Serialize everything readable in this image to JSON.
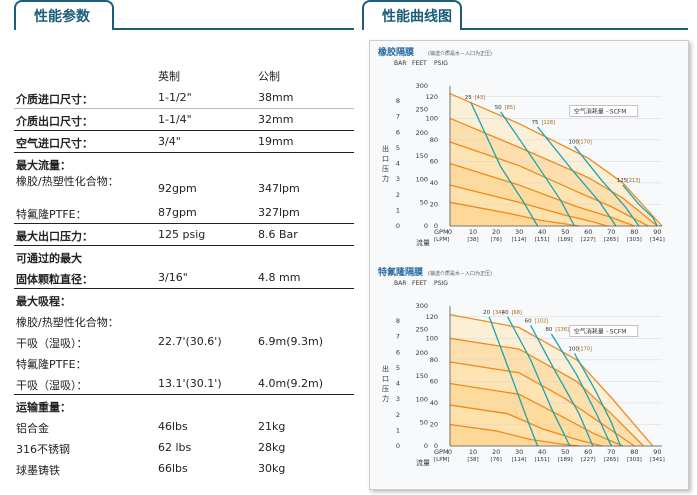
{
  "tabs": {
    "params": "性能参数",
    "curves": "性能曲线图"
  },
  "spec_table": {
    "col_imperial": "英制",
    "col_metric": "公制",
    "rows": [
      {
        "label": "介质进口尺寸：",
        "bold": true,
        "v1": "1-1/2\"",
        "v2": "38mm",
        "border": "thin"
      },
      {
        "label": "介质出口尺寸：",
        "bold": true,
        "v1": "1-1/4\"",
        "v2": "32mm",
        "border": "thick"
      },
      {
        "label": "空气进口尺寸：",
        "bold": true,
        "v1": "3/4\"",
        "v2": "19mm",
        "border": "thick"
      },
      {
        "label": "最大流量：",
        "bold": true,
        "v1": "",
        "v2": "",
        "border": "none"
      },
      {
        "label": "橡胶/热塑性化合物：",
        "bold": false,
        "v1": "92gpm",
        "v2": "347lpm",
        "border": "none",
        "tall": true
      },
      {
        "label": "特氟隆PTFE：",
        "bold": false,
        "v1": "87gpm",
        "v2": "327lpm",
        "border": "thick"
      },
      {
        "label": "最大出口压力：",
        "bold": true,
        "v1": "125 psig",
        "v2": "8.6 Bar",
        "border": "thick"
      },
      {
        "label": "可通过的最大",
        "bold": true,
        "v1": "",
        "v2": "",
        "border": "none"
      },
      {
        "label": "固体颗粒直径：",
        "bold": true,
        "v1": "3/16\"",
        "v2": "4.8 mm",
        "border": "thick"
      },
      {
        "label": "最大吸程：",
        "bold": true,
        "v1": "",
        "v2": "",
        "border": "none"
      },
      {
        "label": "橡胶/热塑性化合物：",
        "bold": false,
        "v1": "",
        "v2": "",
        "border": "none"
      },
      {
        "label": "干吸（湿吸）：",
        "bold": false,
        "v1": "22.7'(30.6')",
        "v2": "6.9m(9.3m)",
        "border": "none"
      },
      {
        "label": "特氟隆PTFE：",
        "bold": false,
        "v1": "",
        "v2": "",
        "border": "none"
      },
      {
        "label": "干吸（湿吸）：",
        "bold": false,
        "v1": "13.1'(30.1')",
        "v2": "4.0m(9.2m)",
        "border": "thick"
      },
      {
        "label": "运输重量：",
        "bold": true,
        "v1": "",
        "v2": "",
        "border": "none"
      },
      {
        "label": "铝合金",
        "bold": false,
        "v1": "46lbs",
        "v2": "21kg",
        "border": "none"
      },
      {
        "label": "316不锈钢",
        "bold": false,
        "v1": "62 lbs",
        "v2": "28kg",
        "border": "none"
      },
      {
        "label": "球墨铸铁",
        "bold": false,
        "v1": "66lbs",
        "v2": "30kg",
        "border": "none"
      }
    ]
  },
  "chart_data": [
    {
      "type": "line",
      "title": "橡胶隔膜",
      "subtitle": "(输送介质是水－入口为正压)",
      "axis_headers": [
        "BAR",
        "FEET",
        "PSIG"
      ],
      "ylabel": "出口压力",
      "xlabel": "流量",
      "x_unit_labels": [
        "GPM",
        "[LPM]"
      ],
      "x_ticks": [
        0,
        10,
        20,
        30,
        40,
        50,
        60,
        70,
        80,
        90
      ],
      "x_tick_lpm": [
        "[38]",
        "[76]",
        "[114]",
        "[151]",
        "[189]",
        "[227]",
        "[265]",
        "[303]",
        "[341]"
      ],
      "psig_ticks": [
        0,
        20,
        40,
        60,
        80,
        100,
        120
      ],
      "bar_ticks": [
        0,
        1,
        2,
        3,
        4,
        5,
        6,
        7,
        8
      ],
      "feet_ticks": [
        0,
        50,
        100,
        150,
        200,
        250,
        300
      ],
      "xlim": [
        0,
        92
      ],
      "ylim": [
        0,
        130
      ],
      "legend": "空气消耗量 - SCFM",
      "pressure_series": [
        {
          "x": [
            0,
            30,
            60,
            75,
            92
          ],
          "y": [
            123,
            95,
            63,
            40,
            0
          ]
        },
        {
          "x": [
            0,
            30,
            60,
            75,
            90
          ],
          "y": [
            100,
            73,
            45,
            26,
            0
          ]
        },
        {
          "x": [
            0,
            30,
            55,
            70,
            86
          ],
          "y": [
            78,
            56,
            32,
            18,
            0
          ]
        },
        {
          "x": [
            0,
            30,
            55,
            70,
            80
          ],
          "y": [
            58,
            38,
            18,
            8,
            0
          ]
        },
        {
          "x": [
            0,
            30,
            50,
            62,
            68
          ],
          "y": [
            38,
            22,
            10,
            4,
            0
          ]
        },
        {
          "x": [
            0,
            25,
            40,
            50,
            56
          ],
          "y": [
            22,
            12,
            5,
            2,
            0
          ]
        }
      ],
      "air_series": [
        {
          "label": "25",
          "label_metric": "[43]",
          "x": [
            9,
            22,
            32,
            38
          ],
          "y": [
            115,
            55,
            22,
            0
          ]
        },
        {
          "label": "50",
          "label_metric": "[85]",
          "x": [
            22,
            38,
            48,
            54
          ],
          "y": [
            106,
            56,
            24,
            0
          ]
        },
        {
          "label": "75",
          "label_metric": "[128]",
          "x": [
            38,
            53,
            65,
            72
          ],
          "y": [
            92,
            52,
            22,
            0
          ]
        },
        {
          "label": "100",
          "label_metric": "[170]",
          "x": [
            54,
            66,
            76,
            82
          ],
          "y": [
            74,
            42,
            18,
            0
          ]
        },
        {
          "label": "125",
          "label_metric": "[213]",
          "x": [
            75,
            82,
            88,
            90
          ],
          "y": [
            38,
            20,
            8,
            0
          ]
        }
      ]
    },
    {
      "type": "line",
      "title": "特氟隆隔膜",
      "subtitle": "(输送介质是水－入口为正压)",
      "axis_headers": [
        "BAR",
        "FEET",
        "PSIG"
      ],
      "ylabel": "出口压力",
      "xlabel": "流量",
      "x_unit_labels": [
        "GPM",
        "[LPM]"
      ],
      "x_ticks": [
        0,
        10,
        20,
        30,
        40,
        50,
        60,
        70,
        80,
        90
      ],
      "x_tick_lpm": [
        "[38]",
        "[76]",
        "[114]",
        "[151]",
        "[189]",
        "[227]",
        "[265]",
        "[303]",
        "[341]"
      ],
      "psig_ticks": [
        0,
        20,
        40,
        60,
        80,
        100,
        120
      ],
      "bar_ticks": [
        0,
        1,
        2,
        3,
        4,
        5,
        6,
        7,
        8
      ],
      "feet_ticks": [
        0,
        50,
        100,
        150,
        200,
        250,
        300
      ],
      "xlim": [
        0,
        92
      ],
      "ylim": [
        0,
        130
      ],
      "legend": "空气消耗量 - SCFM",
      "pressure_series": [
        {
          "x": [
            0,
            30,
            55,
            70,
            88
          ],
          "y": [
            122,
            110,
            80,
            45,
            0
          ]
        },
        {
          "x": [
            0,
            30,
            55,
            70,
            84
          ],
          "y": [
            100,
            90,
            60,
            30,
            0
          ]
        },
        {
          "x": [
            0,
            30,
            50,
            65,
            80
          ],
          "y": [
            78,
            68,
            44,
            22,
            0
          ]
        },
        {
          "x": [
            0,
            30,
            48,
            62,
            75
          ],
          "y": [
            58,
            48,
            28,
            12,
            0
          ]
        },
        {
          "x": [
            0,
            25,
            40,
            55,
            66
          ],
          "y": [
            38,
            30,
            16,
            6,
            0
          ]
        },
        {
          "x": [
            0,
            20,
            35,
            48,
            56
          ],
          "y": [
            20,
            14,
            6,
            2,
            0
          ]
        }
      ],
      "air_series": [
        {
          "label": "20",
          "label_metric": "[34]",
          "x": [
            17,
            24,
            34,
            38
          ],
          "y": [
            120,
            80,
            22,
            0
          ]
        },
        {
          "label": "40",
          "label_metric": "[68]",
          "x": [
            25,
            35,
            44,
            52
          ],
          "y": [
            120,
            80,
            35,
            0
          ]
        },
        {
          "label": "60",
          "label_metric": "[102]",
          "x": [
            35,
            45,
            56,
            62
          ],
          "y": [
            112,
            72,
            30,
            0
          ]
        },
        {
          "label": "80",
          "label_metric": "[136]",
          "x": [
            44,
            55,
            64,
            70
          ],
          "y": [
            104,
            66,
            28,
            0
          ]
        },
        {
          "label": "100",
          "label_metric": "[170]",
          "x": [
            54,
            63,
            70,
            74
          ],
          "y": [
            86,
            52,
            22,
            0
          ]
        }
      ]
    }
  ],
  "colors": {
    "tab": "#1b5d7a",
    "title": "#2a6aa0",
    "pressure": "#f08a1c",
    "air": "#1aa3b4",
    "band_light": "#ffe7b8",
    "band_dark": "#fdd28a"
  }
}
